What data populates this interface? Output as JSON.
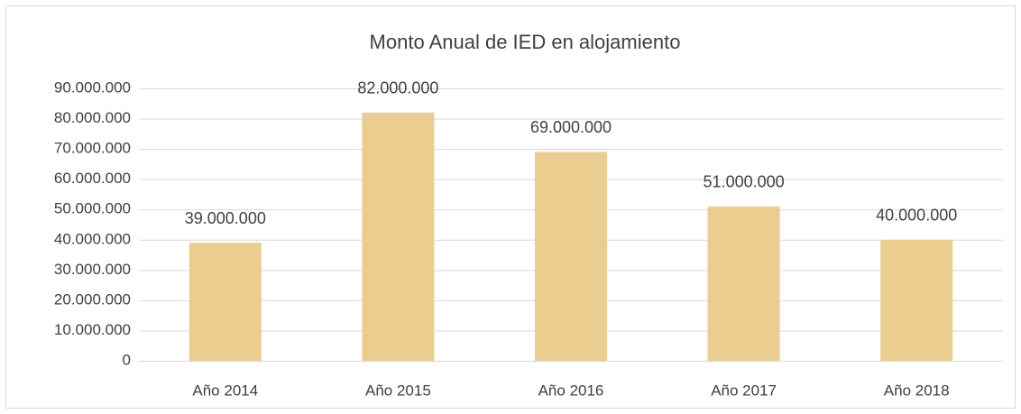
{
  "chart_data": {
    "type": "bar",
    "title": "Monto Anual de IED en alojamiento",
    "categories": [
      "Año 2014",
      "Año 2015",
      "Año 2016",
      "Año 2017",
      "Año 2018"
    ],
    "values": [
      39000000,
      82000000,
      69000000,
      51000000,
      40000000
    ],
    "value_labels": [
      "39.000.000",
      "82.000.000",
      "69.000.000",
      "51.000.000",
      "40.000.000"
    ],
    "color": "#ebcd8f",
    "ylim": [
      0,
      90000000
    ],
    "yticks": [
      0,
      {
        "value": 10000000,
        "label": "10.000.000"
      },
      {
        "value": 20000000,
        "label": "20.000.000"
      },
      {
        "value": 30000000,
        "label": "30.000.000"
      },
      {
        "value": 40000000,
        "label": "40.000.000"
      },
      {
        "value": 50000000,
        "label": "50.000.000"
      },
      {
        "value": 60000000,
        "label": "60.000.000"
      },
      {
        "value": 70000000,
        "label": "70.000.000"
      },
      {
        "value": 80000000,
        "label": "80.000.000"
      },
      {
        "value": 90000000,
        "label": "90.000.000"
      }
    ],
    "grid": true
  }
}
